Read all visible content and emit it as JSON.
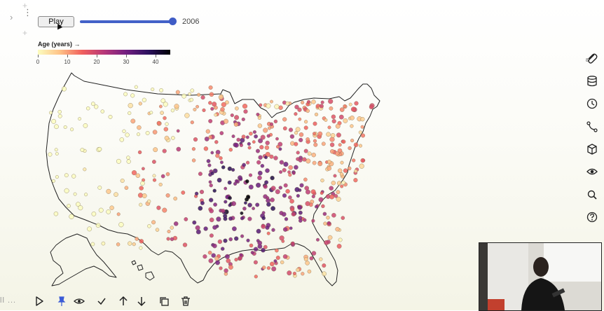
{
  "notebook": {
    "gutter": {
      "add_above": "+",
      "add_below": "+",
      "collapse": "›",
      "menu": "⋮"
    }
  },
  "controls": {
    "play_label": "Play",
    "slider_fraction": 0.98,
    "year_display": "2006"
  },
  "legend": {
    "title": "Age (years) →",
    "ticks": [
      "0",
      "10",
      "20",
      "30",
      "40"
    ],
    "domain": [
      0,
      45
    ],
    "colors": [
      "#fcfdbf",
      "#fec287",
      "#f1605d",
      "#b73779",
      "#721f81",
      "#2c115f",
      "#000004"
    ]
  },
  "accent_color": "#4361c8",
  "side_rail": {
    "icons": [
      "paperclip-icon",
      "database-icon",
      "history-icon",
      "branch-icon",
      "package-icon",
      "eye-icon",
      "search-icon",
      "help-icon"
    ],
    "paperclip_count": "8"
  },
  "cell_toolbar": {
    "fragment": "ll ...",
    "icons": [
      "run-icon",
      "pin-icon",
      "eye-icon",
      "check-icon",
      "move-up-icon",
      "move-down-icon",
      "duplicate-icon",
      "delete-icon"
    ]
  }
}
